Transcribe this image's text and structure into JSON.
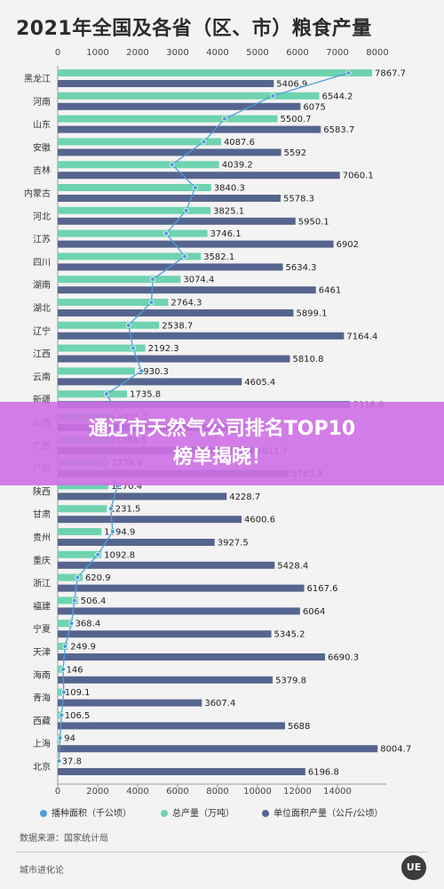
{
  "title": "2021年全国及各省（区、市）粮食产量",
  "banner": {
    "line1": "通辽市天然气公司排名TOP10",
    "line2": "榜单揭晓！"
  },
  "source": "数据来源：国家统计局",
  "footer_brand": "城市进化论",
  "logo_text": "UE",
  "colors": {
    "area_line": "#4c9fd8",
    "total_bar": "#6fd3b0",
    "unit_bar": "#56658f",
    "banner": "#ce70e6"
  },
  "chart_data": {
    "type": "bar",
    "title": "2021年全国及各省（区、市）粮食产量",
    "categories": [
      "黑龙江",
      "河南",
      "山东",
      "安徽",
      "吉林",
      "内蒙古",
      "河北",
      "江苏",
      "四川",
      "湖南",
      "湖北",
      "辽宁",
      "江西",
      "云南",
      "新疆",
      "山西",
      "广西",
      "广东",
      "陕西",
      "甘肃",
      "贵州",
      "重庆",
      "浙江",
      "福建",
      "宁夏",
      "天津",
      "海南",
      "青海",
      "西藏",
      "上海",
      "北京"
    ],
    "top_axis": {
      "range": [
        0,
        8000
      ],
      "ticks": [
        0,
        1000,
        2000,
        3000,
        4000,
        5000,
        6000,
        7000,
        8000
      ]
    },
    "bottom_axis": {
      "range": [
        0,
        16000
      ],
      "ticks": [
        0,
        2000,
        4000,
        6000,
        8000,
        10000,
        12000,
        14000
      ]
    },
    "series": [
      {
        "name": "播种面积（千公顷）",
        "type": "line",
        "axis": "bottom",
        "values": [
          14551,
          10772,
          8355,
          7309,
          5722,
          6884,
          6428,
          5427,
          6358,
          4758,
          4687,
          3543,
          3773,
          4191,
          2438,
          3131,
          2823,
          2213,
          2993,
          2660,
          2753,
          2010,
          993,
          835,
          688,
          370,
          271,
          302,
          190,
          115,
          62
        ]
      },
      {
        "name": "总产量（万吨）",
        "type": "bar",
        "axis": "top",
        "values": [
          7867.7,
          6544.2,
          5500.7,
          4087.6,
          4039.2,
          3840.3,
          3825.1,
          3746.1,
          3582.1,
          3074.4,
          2764.3,
          2538.7,
          2192.3,
          1930.3,
          1735.8,
          1421.2,
          1386.5,
          1279.9,
          1270.4,
          1231.5,
          1094.9,
          1092.8,
          620.9,
          506.4,
          368.4,
          249.9,
          146,
          109.1,
          106.5,
          94,
          37.8
        ]
      },
      {
        "name": "单位面积产量（公斤/公顷）",
        "type": "bar",
        "axis": "top",
        "values": [
          5406.9,
          6075,
          6583.7,
          5592,
          7060.1,
          5578.3,
          5950.1,
          6902,
          5634.3,
          6461,
          5899.1,
          7164.4,
          5810.8,
          4605.4,
          7318.9,
          4540.3,
          4911.7,
          5783.3,
          4228.7,
          4600.6,
          3927.5,
          5428.4,
          6167.6,
          6064,
          5345.2,
          6690.3,
          5379.8,
          3607.4,
          5688,
          8004.7,
          6196.8
        ]
      }
    ]
  }
}
